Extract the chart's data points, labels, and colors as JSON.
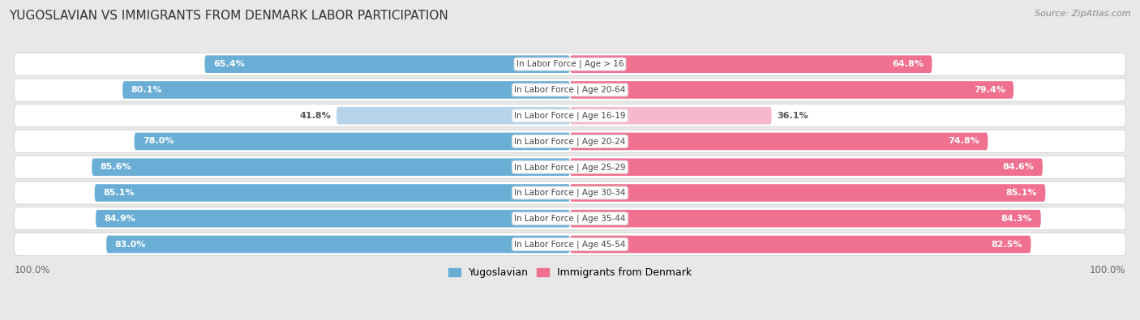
{
  "title": "YUGOSLAVIAN VS IMMIGRANTS FROM DENMARK LABOR PARTICIPATION",
  "source": "Source: ZipAtlas.com",
  "categories": [
    "In Labor Force | Age > 16",
    "In Labor Force | Age 20-64",
    "In Labor Force | Age 16-19",
    "In Labor Force | Age 20-24",
    "In Labor Force | Age 25-29",
    "In Labor Force | Age 30-34",
    "In Labor Force | Age 35-44",
    "In Labor Force | Age 45-54"
  ],
  "yugoslavian_values": [
    65.4,
    80.1,
    41.8,
    78.0,
    85.6,
    85.1,
    84.9,
    83.0
  ],
  "denmark_values": [
    64.8,
    79.4,
    36.1,
    74.8,
    84.6,
    85.1,
    84.3,
    82.5
  ],
  "yug_color": "#6aaed6",
  "yug_color_light": "#b8d4ea",
  "den_color": "#f07090",
  "den_color_light": "#f7b8cc",
  "bg_color": "#e8e8e8",
  "row_bg": "#f0f0f0",
  "legend_yug": "Yugoslavian",
  "legend_den": "Immigrants from Denmark",
  "max_val": 100.0
}
